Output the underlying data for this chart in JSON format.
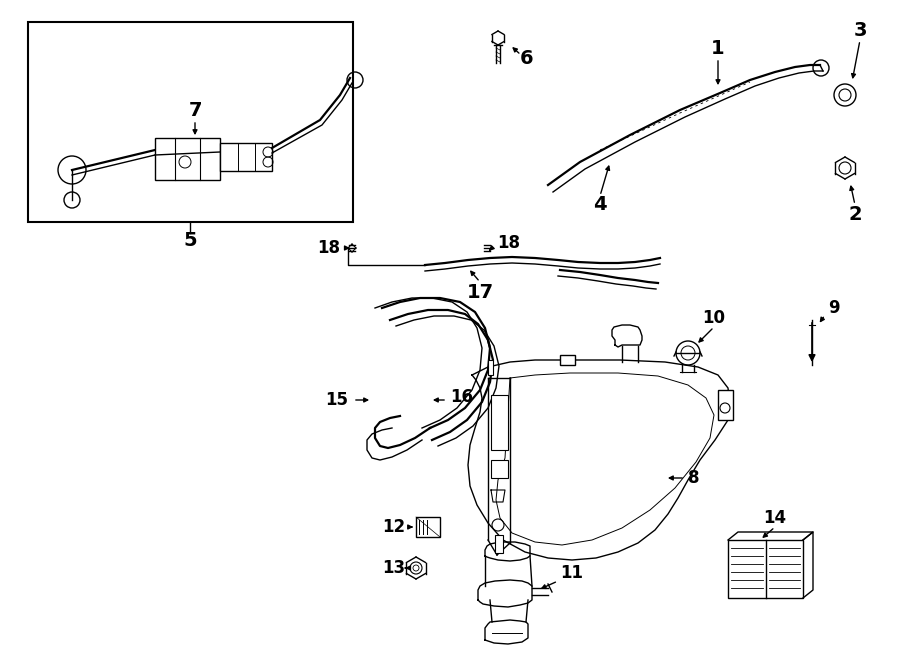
{
  "bg_color": "#ffffff",
  "line_color": "#000000",
  "lw": 1.0,
  "lw_thick": 1.6
}
